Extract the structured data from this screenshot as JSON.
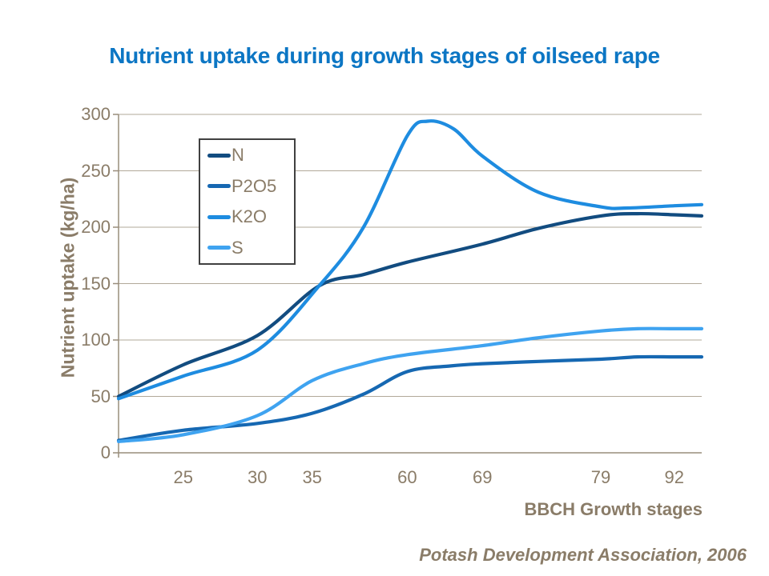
{
  "title": "Nutrient uptake during growth stages of oilseed rape",
  "source": "Potash Development Association, 2006",
  "colors": {
    "title": "#0C76C4",
    "axis_text": "#8A7C68",
    "gridline": "#B2A999",
    "axis_line": "#998D7B",
    "legend_border": "#404040",
    "background": "#FFFFFF"
  },
  "chart_data": {
    "type": "line",
    "title": "Nutrient uptake during growth stages of oilseed rape",
    "xlabel": "BBCH Growth stages",
    "ylabel": "Nutrient uptake (kg/ha)",
    "ylim": [
      0,
      300
    ],
    "y_ticks": [
      0,
      50,
      100,
      150,
      200,
      250,
      300
    ],
    "grid": "horizontal",
    "legend_position": "top-left-inside",
    "x_ticks": [
      {
        "label": "25",
        "pos": 0.111
      },
      {
        "label": "30",
        "pos": 0.238
      },
      {
        "label": "35",
        "pos": 0.332
      },
      {
        "label": "60",
        "pos": 0.495
      },
      {
        "label": "69",
        "pos": 0.624
      },
      {
        "label": "79",
        "pos": 0.827
      },
      {
        "label": "92",
        "pos": 0.953
      }
    ],
    "stages_labeled": [
      25,
      30,
      35,
      60,
      69,
      79,
      92
    ],
    "series": [
      {
        "name": "N",
        "color": "#124C80",
        "values_at_labeled_stages": [
          78,
          104,
          146,
          169,
          185,
          210,
          211
        ],
        "points": [
          [
            0,
            50
          ],
          [
            0.111,
            78
          ],
          [
            0.238,
            104
          ],
          [
            0.344,
            148
          ],
          [
            0.42,
            158
          ],
          [
            0.495,
            169
          ],
          [
            0.624,
            185
          ],
          [
            0.72,
            199
          ],
          [
            0.827,
            210
          ],
          [
            0.89,
            212
          ],
          [
            0.953,
            211
          ],
          [
            1,
            210
          ]
        ]
      },
      {
        "name": "P2O5",
        "color": "#1668B2",
        "values_at_labeled_stages": [
          20,
          26,
          35,
          72,
          79,
          83,
          85
        ],
        "points": [
          [
            0,
            11
          ],
          [
            0.111,
            20
          ],
          [
            0.238,
            26
          ],
          [
            0.332,
            35
          ],
          [
            0.42,
            52
          ],
          [
            0.495,
            72
          ],
          [
            0.57,
            77
          ],
          [
            0.624,
            79
          ],
          [
            0.72,
            81
          ],
          [
            0.827,
            83
          ],
          [
            0.89,
            85
          ],
          [
            0.953,
            85
          ],
          [
            1,
            85
          ]
        ]
      },
      {
        "name": "K2O",
        "color": "#1E8CE0",
        "values_at_labeled_stages": [
          68,
          91,
          141,
          281,
          263,
          218,
          219
        ],
        "points": [
          [
            0,
            48
          ],
          [
            0.111,
            68
          ],
          [
            0.238,
            91
          ],
          [
            0.344,
            148
          ],
          [
            0.42,
            200
          ],
          [
            0.495,
            281
          ],
          [
            0.53,
            294
          ],
          [
            0.575,
            287
          ],
          [
            0.624,
            263
          ],
          [
            0.72,
            231
          ],
          [
            0.827,
            218
          ],
          [
            0.873,
            217
          ],
          [
            0.953,
            219
          ],
          [
            1,
            220
          ]
        ]
      },
      {
        "name": "S",
        "color": "#3FA3F0",
        "values_at_labeled_stages": [
          16,
          33,
          64,
          87,
          95,
          108,
          110
        ],
        "points": [
          [
            0,
            10
          ],
          [
            0.111,
            16
          ],
          [
            0.238,
            33
          ],
          [
            0.332,
            64
          ],
          [
            0.42,
            79
          ],
          [
            0.495,
            87
          ],
          [
            0.624,
            95
          ],
          [
            0.72,
            102
          ],
          [
            0.827,
            108
          ],
          [
            0.89,
            110
          ],
          [
            0.953,
            110
          ],
          [
            1,
            110
          ]
        ]
      }
    ]
  }
}
